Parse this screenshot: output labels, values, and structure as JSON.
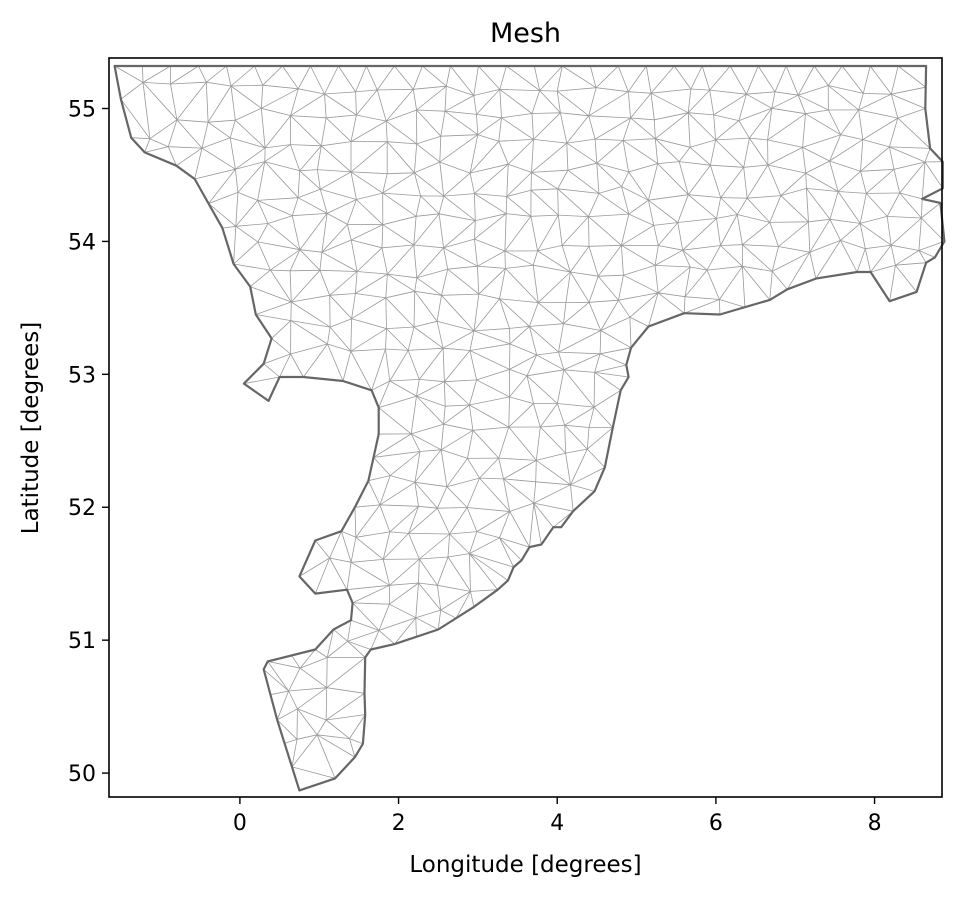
{
  "chart_data": {
    "type": "mesh",
    "title": "Mesh",
    "xlabel": "Longitude [degrees]",
    "ylabel": "Latitude [degrees]",
    "xlim": [
      -1.65,
      8.85
    ],
    "ylim": [
      49.82,
      55.38
    ],
    "xticks": [
      0,
      2,
      4,
      6,
      8
    ],
    "yticks": [
      50,
      51,
      52,
      53,
      54,
      55
    ],
    "grid": false,
    "colors": {
      "boundary": "#666666",
      "mesh_edges": "#999999",
      "axes": "#000000"
    },
    "boundary": [
      [
        -1.58,
        55.32
      ],
      [
        8.65,
        55.32
      ],
      [
        8.64,
        55.0
      ],
      [
        8.7,
        54.7
      ],
      [
        8.86,
        54.6
      ],
      [
        8.86,
        54.4
      ],
      [
        8.6,
        54.32
      ],
      [
        8.83,
        54.29
      ],
      [
        8.88,
        54.0
      ],
      [
        8.76,
        53.88
      ],
      [
        8.65,
        53.84
      ],
      [
        8.53,
        53.62
      ],
      [
        8.19,
        53.55
      ],
      [
        7.95,
        53.77
      ],
      [
        7.78,
        53.77
      ],
      [
        7.26,
        53.72
      ],
      [
        6.9,
        53.64
      ],
      [
        6.68,
        53.56
      ],
      [
        6.05,
        53.45
      ],
      [
        5.6,
        53.46
      ],
      [
        5.15,
        53.36
      ],
      [
        4.93,
        53.2
      ],
      [
        4.87,
        53.07
      ],
      [
        4.9,
        52.98
      ],
      [
        4.8,
        52.88
      ],
      [
        4.7,
        52.6
      ],
      [
        4.6,
        52.3
      ],
      [
        4.47,
        52.12
      ],
      [
        4.2,
        51.97
      ],
      [
        4.05,
        51.85
      ],
      [
        3.95,
        51.85
      ],
      [
        3.8,
        51.72
      ],
      [
        3.65,
        51.7
      ],
      [
        3.55,
        51.6
      ],
      [
        3.45,
        51.55
      ],
      [
        3.38,
        51.45
      ],
      [
        3.25,
        51.38
      ],
      [
        2.95,
        51.25
      ],
      [
        2.5,
        51.08
      ],
      [
        1.95,
        50.97
      ],
      [
        1.65,
        50.93
      ],
      [
        1.58,
        50.87
      ],
      [
        1.57,
        50.6
      ],
      [
        1.58,
        50.44
      ],
      [
        1.55,
        50.22
      ],
      [
        1.45,
        50.12
      ],
      [
        1.2,
        49.96
      ],
      [
        0.75,
        49.87
      ],
      [
        0.47,
        50.4
      ],
      [
        0.3,
        50.78
      ],
      [
        0.35,
        50.84
      ],
      [
        0.95,
        50.93
      ],
      [
        1.18,
        51.08
      ],
      [
        1.4,
        51.15
      ],
      [
        1.42,
        51.28
      ],
      [
        1.35,
        51.38
      ],
      [
        0.95,
        51.35
      ],
      [
        0.75,
        51.48
      ],
      [
        0.95,
        51.75
      ],
      [
        1.28,
        51.82
      ],
      [
        1.45,
        52.0
      ],
      [
        1.62,
        52.2
      ],
      [
        1.75,
        52.55
      ],
      [
        1.75,
        52.75
      ],
      [
        1.66,
        52.88
      ],
      [
        1.3,
        52.95
      ],
      [
        0.8,
        52.98
      ],
      [
        0.5,
        52.98
      ],
      [
        0.36,
        52.8
      ],
      [
        0.05,
        52.93
      ],
      [
        0.3,
        53.08
      ],
      [
        0.4,
        53.27
      ],
      [
        0.2,
        53.45
      ],
      [
        0.13,
        53.66
      ],
      [
        -0.08,
        53.83
      ],
      [
        -0.22,
        54.1
      ],
      [
        -0.57,
        54.47
      ],
      [
        -0.8,
        54.57
      ],
      [
        -1.2,
        54.67
      ],
      [
        -1.37,
        54.78
      ],
      [
        -1.5,
        55.07
      ]
    ]
  }
}
